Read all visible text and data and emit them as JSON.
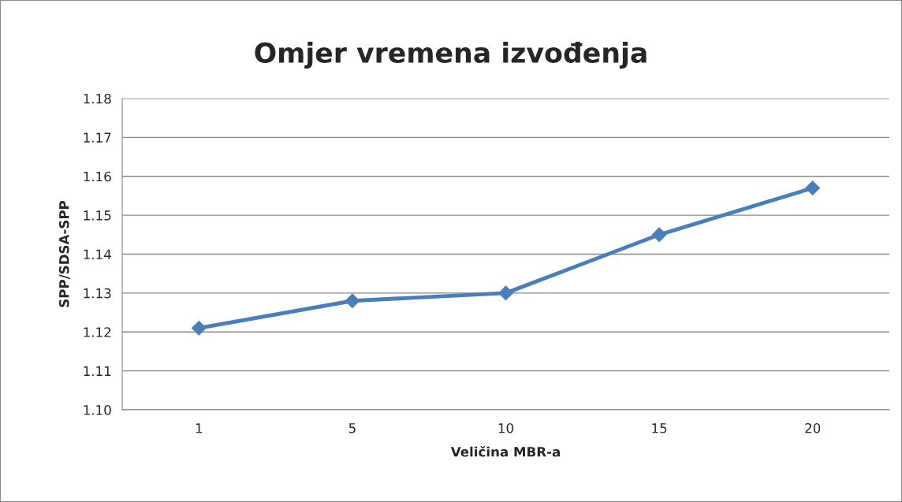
{
  "chart_data": {
    "type": "line",
    "title": "Omjer vremena izvođenja",
    "xlabel": "Veličina MBR-a",
    "ylabel": "SPP/SDSA-SPP",
    "categories": [
      "1",
      "5",
      "10",
      "15",
      "20"
    ],
    "series": [
      {
        "color": "#4a7ebb",
        "values": [
          1.121,
          1.128,
          1.13,
          1.145,
          1.157
        ]
      }
    ],
    "ylim": [
      1.1,
      1.18
    ],
    "yticks": [
      {
        "value": 1.1,
        "label": "1.10"
      },
      {
        "value": 1.11,
        "label": "1.11"
      },
      {
        "value": 1.12,
        "label": "1.12"
      },
      {
        "value": 1.13,
        "label": "1.13"
      },
      {
        "value": 1.14,
        "label": "1.14"
      },
      {
        "value": 1.15,
        "label": "1.15"
      },
      {
        "value": 1.16,
        "label": "1.16"
      },
      {
        "value": 1.17,
        "label": "1.17"
      },
      {
        "value": 1.18,
        "label": "1.18"
      }
    ],
    "grid": "y",
    "marker": "diamond",
    "line_style": "solid"
  }
}
